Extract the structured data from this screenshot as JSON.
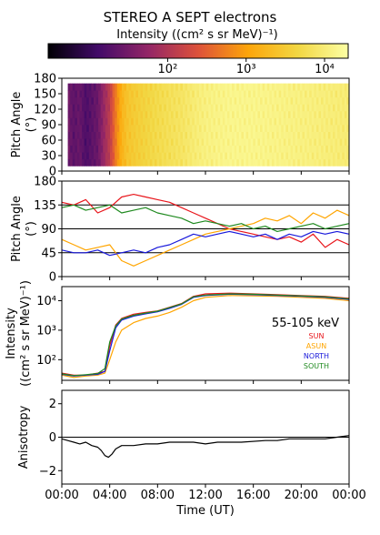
{
  "chart_data": {
    "type": "composite",
    "title": "STEREO A SEPT electrons",
    "colorbar": {
      "label": "Intensity ((cm² s sr MeV)⁻¹)",
      "scale": "log",
      "range": [
        3,
        20000
      ],
      "ticks": [
        {
          "value": 100,
          "label": "10²"
        },
        {
          "value": 1000,
          "label": "10³"
        },
        {
          "value": 10000,
          "label": "10⁴"
        }
      ],
      "colormap": [
        "#000004",
        "#420a68",
        "#932667",
        "#dd513a",
        "#fca50a",
        "#f2d743",
        "#fcffa4"
      ]
    },
    "x_axis": {
      "label": "Time (UT)",
      "range": [
        "00:00",
        "24:00"
      ],
      "ticks": [
        "00:00",
        "04:00",
        "08:00",
        "12:00",
        "16:00",
        "20:00",
        "00:00"
      ],
      "tick_hours": [
        0,
        4,
        8,
        12,
        16,
        20,
        24
      ]
    },
    "panels": [
      {
        "id": "pitch-angle-spectrogram",
        "type": "heatmap",
        "ylabel": "Pitch Angle (°)",
        "ylim": [
          0,
          180
        ],
        "yticks": [
          0,
          30,
          60,
          90,
          120,
          150,
          180
        ],
        "intensity_by_hour": [
          [
            0.5,
            30
          ],
          [
            1.0,
            20
          ],
          [
            1.5,
            25
          ],
          [
            2.0,
            15
          ],
          [
            2.5,
            20
          ],
          [
            3.0,
            25
          ],
          [
            3.5,
            60
          ],
          [
            4.0,
            120
          ],
          [
            4.5,
            500
          ],
          [
            5.0,
            1500
          ],
          [
            5.5,
            2500
          ],
          [
            6.0,
            3000
          ],
          [
            6.5,
            3500
          ],
          [
            7.0,
            4000
          ],
          [
            7.5,
            4500
          ],
          [
            8.0,
            5000
          ],
          [
            9.0,
            6000
          ],
          [
            10.0,
            7000
          ],
          [
            11.0,
            9000
          ],
          [
            12.0,
            11000
          ],
          [
            13.0,
            12000
          ],
          [
            14.0,
            13000
          ],
          [
            16.0,
            13000
          ],
          [
            18.0,
            12000
          ],
          [
            20.0,
            11000
          ],
          [
            22.0,
            10000
          ],
          [
            24.0,
            9000
          ]
        ]
      },
      {
        "id": "sector-pitch-angles",
        "type": "line",
        "ylabel": "Pitch Angle (°)",
        "ylim": [
          0,
          180
        ],
        "yticks": [
          0,
          45,
          90,
          135,
          180
        ],
        "reference_lines": [
          45,
          90,
          135
        ],
        "series": [
          {
            "name": "SUN",
            "color": "#e8151b",
            "x": [
              0,
              1,
              2,
              3,
              4,
              5,
              6,
              7,
              8,
              9,
              10,
              11,
              12,
              13,
              14,
              15,
              16,
              17,
              18,
              19,
              20,
              21,
              22,
              23,
              24
            ],
            "y": [
              140,
              135,
              145,
              120,
              130,
              150,
              155,
              150,
              145,
              140,
              130,
              120,
              110,
              100,
              90,
              85,
              80,
              75,
              70,
              75,
              65,
              80,
              55,
              70,
              60
            ]
          },
          {
            "name": "ASUN",
            "color": "#ffa500",
            "x": [
              0,
              1,
              2,
              3,
              4,
              5,
              6,
              7,
              8,
              9,
              10,
              11,
              12,
              13,
              14,
              15,
              16,
              17,
              18,
              19,
              20,
              21,
              22,
              23,
              24
            ],
            "y": [
              70,
              60,
              50,
              55,
              60,
              30,
              20,
              30,
              40,
              50,
              60,
              70,
              80,
              85,
              90,
              95,
              100,
              110,
              105,
              115,
              100,
              120,
              110,
              125,
              115
            ]
          },
          {
            "name": "NORTH",
            "color": "#1a1adb",
            "x": [
              0,
              1,
              2,
              3,
              4,
              5,
              6,
              7,
              8,
              9,
              10,
              11,
              12,
              13,
              14,
              15,
              16,
              17,
              18,
              19,
              20,
              21,
              22,
              23,
              24
            ],
            "y": [
              50,
              45,
              45,
              50,
              40,
              45,
              50,
              45,
              55,
              60,
              70,
              80,
              75,
              80,
              85,
              80,
              75,
              80,
              70,
              80,
              75,
              85,
              80,
              85,
              80
            ]
          },
          {
            "name": "SOUTH",
            "color": "#1f8a1f",
            "x": [
              0,
              1,
              2,
              3,
              4,
              5,
              6,
              7,
              8,
              9,
              10,
              11,
              12,
              13,
              14,
              15,
              16,
              17,
              18,
              19,
              20,
              21,
              22,
              23,
              24
            ],
            "y": [
              130,
              135,
              125,
              130,
              135,
              120,
              125,
              130,
              120,
              115,
              110,
              100,
              105,
              100,
              95,
              100,
              90,
              95,
              85,
              90,
              95,
              100,
              90,
              95,
              100
            ]
          }
        ]
      },
      {
        "id": "sector-intensities",
        "type": "line",
        "ylabel": "Intensity ((cm² s sr MeV)⁻¹)",
        "yscale": "log",
        "ylim": [
          20,
          30000
        ],
        "yticks": [
          {
            "value": 100,
            "label": "10²"
          },
          {
            "value": 1000,
            "label": "10³"
          },
          {
            "value": 10000,
            "label": "10⁴"
          }
        ],
        "annotation": "55-105 keV",
        "series": [
          {
            "name": "SUN",
            "color": "#e8151b",
            "x": [
              0,
              1,
              2,
              3,
              3.6,
              4.0,
              4.5,
              5.0,
              6.0,
              7.0,
              8.0,
              9.0,
              10.0,
              11.0,
              12.0,
              14.0,
              16.0,
              18.0,
              20.0,
              22.0,
              24.0
            ],
            "y": [
              35,
              30,
              30,
              35,
              40,
              300,
              1500,
              2500,
              3500,
              4000,
              4500,
              6000,
              8000,
              14000,
              17000,
              18000,
              17000,
              16000,
              15000,
              14000,
              12000
            ]
          },
          {
            "name": "ASUN",
            "color": "#ffa500",
            "x": [
              0,
              1,
              2,
              3,
              3.6,
              4.0,
              4.5,
              5.0,
              6.0,
              7.0,
              8.0,
              9.0,
              10.0,
              11.0,
              12.0,
              14.0,
              16.0,
              18.0,
              20.0,
              22.0,
              24.0
            ],
            "y": [
              30,
              25,
              28,
              30,
              35,
              100,
              400,
              1000,
              1800,
              2500,
              3000,
              4000,
              6000,
              10000,
              13000,
              15000,
              14500,
              14000,
              13000,
              12000,
              10000
            ]
          },
          {
            "name": "NORTH",
            "color": "#1a1adb",
            "x": [
              0,
              1,
              2,
              3,
              3.6,
              4.0,
              4.5,
              5.0,
              6.0,
              7.0,
              8.0,
              9.0,
              10.0,
              11.0,
              12.0,
              14.0,
              16.0,
              18.0,
              20.0,
              22.0,
              24.0
            ],
            "y": [
              32,
              28,
              30,
              32,
              40,
              200,
              1200,
              2200,
              3000,
              3600,
              4200,
              5500,
              7500,
              13000,
              15000,
              16500,
              16000,
              15000,
              14000,
              13000,
              11000
            ]
          },
          {
            "name": "SOUTH",
            "color": "#1f8a1f",
            "x": [
              0,
              1,
              2,
              3,
              3.6,
              4.0,
              4.5,
              5.0,
              6.0,
              7.0,
              8.0,
              9.0,
              10.0,
              11.0,
              12.0,
              14.0,
              16.0,
              18.0,
              20.0,
              22.0,
              24.0
            ],
            "y": [
              33,
              29,
              31,
              34,
              50,
              400,
              1400,
              2400,
              3200,
              3800,
              4400,
              5800,
              7800,
              13500,
              15500,
              17000,
              16500,
              15500,
              14500,
              13500,
              11500
            ]
          }
        ]
      },
      {
        "id": "anisotropy",
        "type": "line",
        "ylabel": "Anisotropy",
        "ylim": [
          -2.8,
          2.8
        ],
        "yticks": [
          -2,
          0,
          2
        ],
        "reference_lines": [
          0
        ],
        "series": [
          {
            "name": "Anisotropy",
            "color": "#000000",
            "x": [
              0,
              0.5,
              1,
              1.5,
              2,
              2.5,
              3,
              3.3,
              3.6,
              3.9,
              4.2,
              4.5,
              5,
              6,
              7,
              8,
              9,
              10,
              11,
              12,
              13,
              14,
              15,
              17,
              18,
              19,
              20,
              21,
              22,
              23,
              24
            ],
            "y": [
              -0.1,
              -0.2,
              -0.3,
              -0.4,
              -0.3,
              -0.5,
              -0.6,
              -0.8,
              -1.1,
              -1.2,
              -1.0,
              -0.7,
              -0.5,
              -0.5,
              -0.4,
              -0.4,
              -0.3,
              -0.3,
              -0.3,
              -0.4,
              -0.3,
              -0.3,
              -0.3,
              -0.2,
              -0.2,
              -0.1,
              -0.1,
              -0.1,
              -0.1,
              0.0,
              0.1
            ]
          }
        ]
      }
    ]
  }
}
